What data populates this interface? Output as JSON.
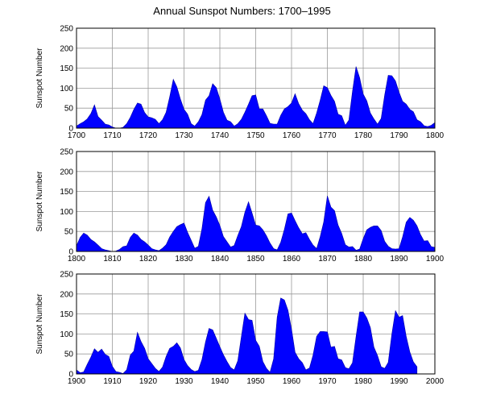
{
  "chart_data": {
    "title": "Annual Sunspot Numbers: 1700–1995",
    "type": "area",
    "grid": true,
    "fill_color": "#0000ff",
    "panels": [
      {
        "ylabel": "Sunspot Number",
        "xlim": [
          1700,
          1800
        ],
        "ylim": [
          0,
          250
        ],
        "xticks": [
          1700,
          1710,
          1720,
          1730,
          1740,
          1750,
          1760,
          1770,
          1780,
          1790,
          1800
        ],
        "yticks": [
          0,
          50,
          100,
          150,
          200,
          250
        ],
        "x": [
          1700,
          1701,
          1702,
          1703,
          1704,
          1705,
          1706,
          1707,
          1708,
          1709,
          1710,
          1711,
          1712,
          1713,
          1714,
          1715,
          1716,
          1717,
          1718,
          1719,
          1720,
          1721,
          1722,
          1723,
          1724,
          1725,
          1726,
          1727,
          1728,
          1729,
          1730,
          1731,
          1732,
          1733,
          1734,
          1735,
          1736,
          1737,
          1738,
          1739,
          1740,
          1741,
          1742,
          1743,
          1744,
          1745,
          1746,
          1747,
          1748,
          1749,
          1750,
          1751,
          1752,
          1753,
          1754,
          1755,
          1756,
          1757,
          1758,
          1759,
          1760,
          1761,
          1762,
          1763,
          1764,
          1765,
          1766,
          1767,
          1768,
          1769,
          1770,
          1771,
          1772,
          1773,
          1774,
          1775,
          1776,
          1777,
          1778,
          1779,
          1780,
          1781,
          1782,
          1783,
          1784,
          1785,
          1786,
          1787,
          1788,
          1789,
          1790,
          1791,
          1792,
          1793,
          1794,
          1795,
          1796,
          1797,
          1798,
          1799,
          1800
        ],
        "y": [
          5,
          11,
          16,
          23,
          36,
          58,
          29,
          20,
          10,
          8,
          3,
          0,
          0,
          2,
          11,
          27,
          47,
          63,
          60,
          39,
          28,
          26,
          22,
          11,
          21,
          40,
          78,
          122,
          103,
          73,
          47,
          35,
          11,
          5,
          16,
          34,
          70,
          81,
          111,
          101,
          73,
          40,
          20,
          16,
          5,
          11,
          22,
          40,
          60,
          81,
          83,
          48,
          48,
          31,
          12,
          10,
          10,
          32,
          48,
          54,
          63,
          86,
          61,
          45,
          36,
          21,
          11,
          38,
          70,
          106,
          101,
          82,
          67,
          35,
          31,
          7,
          20,
          92,
          154,
          126,
          85,
          68,
          38,
          23,
          10,
          24,
          83,
          132,
          131,
          118,
          90,
          67,
          60,
          47,
          41,
          21,
          16,
          6,
          4,
          7,
          14
        ]
      },
      {
        "ylabel": "Sunspot Number",
        "xlim": [
          1800,
          1900
        ],
        "ylim": [
          0,
          250
        ],
        "xticks": [
          1800,
          1810,
          1820,
          1830,
          1840,
          1850,
          1860,
          1870,
          1880,
          1890,
          1900
        ],
        "yticks": [
          0,
          50,
          100,
          150,
          200,
          250
        ],
        "x": [
          1800,
          1801,
          1802,
          1803,
          1804,
          1805,
          1806,
          1807,
          1808,
          1809,
          1810,
          1811,
          1812,
          1813,
          1814,
          1815,
          1816,
          1817,
          1818,
          1819,
          1820,
          1821,
          1822,
          1823,
          1824,
          1825,
          1826,
          1827,
          1828,
          1829,
          1830,
          1831,
          1832,
          1833,
          1834,
          1835,
          1836,
          1837,
          1838,
          1839,
          1840,
          1841,
          1842,
          1843,
          1844,
          1845,
          1846,
          1847,
          1848,
          1849,
          1850,
          1851,
          1852,
          1853,
          1854,
          1855,
          1856,
          1857,
          1858,
          1859,
          1860,
          1861,
          1862,
          1863,
          1864,
          1865,
          1866,
          1867,
          1868,
          1869,
          1870,
          1871,
          1872,
          1873,
          1874,
          1875,
          1876,
          1877,
          1878,
          1879,
          1880,
          1881,
          1882,
          1883,
          1884,
          1885,
          1886,
          1887,
          1888,
          1889,
          1890,
          1891,
          1892,
          1893,
          1894,
          1895,
          1896,
          1897,
          1898,
          1899,
          1900
        ],
        "y": [
          14,
          35,
          46,
          41,
          30,
          24,
          16,
          7,
          4,
          2,
          0,
          1,
          5,
          12,
          14,
          35,
          46,
          41,
          30,
          24,
          16,
          7,
          4,
          2,
          8,
          17,
          36,
          50,
          62,
          67,
          71,
          48,
          28,
          8,
          13,
          57,
          122,
          138,
          103,
          86,
          65,
          37,
          24,
          11,
          15,
          40,
          62,
          98,
          124,
          96,
          66,
          64,
          54,
          39,
          21,
          7,
          4,
          23,
          55,
          94,
          96,
          77,
          59,
          44,
          47,
          30,
          16,
          7,
          37,
          74,
          139,
          111,
          102,
          66,
          45,
          17,
          11,
          12,
          3,
          6,
          32,
          54,
          60,
          64,
          64,
          52,
          25,
          13,
          7,
          6,
          7,
          36,
          73,
          85,
          78,
          64,
          42,
          26,
          27,
          12,
          10
        ]
      },
      {
        "ylabel": "Sunspot Number",
        "xlim": [
          1900,
          2000
        ],
        "ylim": [
          0,
          250
        ],
        "xticks": [
          1900,
          1910,
          1920,
          1930,
          1940,
          1950,
          1960,
          1970,
          1980,
          1990,
          2000
        ],
        "yticks": [
          0,
          50,
          100,
          150,
          200,
          250
        ],
        "x": [
          1900,
          1901,
          1902,
          1903,
          1904,
          1905,
          1906,
          1907,
          1908,
          1909,
          1910,
          1911,
          1912,
          1913,
          1914,
          1915,
          1916,
          1917,
          1918,
          1919,
          1920,
          1921,
          1922,
          1923,
          1924,
          1925,
          1926,
          1927,
          1928,
          1929,
          1930,
          1931,
          1932,
          1933,
          1934,
          1935,
          1936,
          1937,
          1938,
          1939,
          1940,
          1941,
          1942,
          1943,
          1944,
          1945,
          1946,
          1947,
          1948,
          1949,
          1950,
          1951,
          1952,
          1953,
          1954,
          1955,
          1956,
          1957,
          1958,
          1959,
          1960,
          1961,
          1962,
          1963,
          1964,
          1965,
          1966,
          1967,
          1968,
          1969,
          1970,
          1971,
          1972,
          1973,
          1974,
          1975,
          1976,
          1977,
          1978,
          1979,
          1980,
          1981,
          1982,
          1983,
          1984,
          1985,
          1986,
          1987,
          1988,
          1989,
          1990,
          1991,
          1992,
          1993,
          1994,
          1995
        ],
        "y": [
          10,
          3,
          5,
          24,
          42,
          63,
          54,
          62,
          49,
          44,
          19,
          6,
          4,
          1,
          10,
          47,
          57,
          104,
          81,
          64,
          38,
          26,
          14,
          6,
          17,
          44,
          64,
          69,
          78,
          65,
          36,
          21,
          11,
          6,
          9,
          36,
          80,
          114,
          110,
          89,
          68,
          48,
          31,
          16,
          10,
          33,
          93,
          152,
          136,
          134,
          84,
          69,
          31,
          14,
          4,
          38,
          142,
          190,
          185,
          159,
          112,
          54,
          38,
          28,
          10,
          15,
          47,
          94,
          106,
          106,
          105,
          67,
          69,
          38,
          35,
          16,
          13,
          28,
          93,
          155,
          155,
          140,
          116,
          67,
          46,
          18,
          14,
          29,
          100,
          158,
          142,
          146,
          94,
          55,
          30,
          18
        ]
      }
    ]
  }
}
